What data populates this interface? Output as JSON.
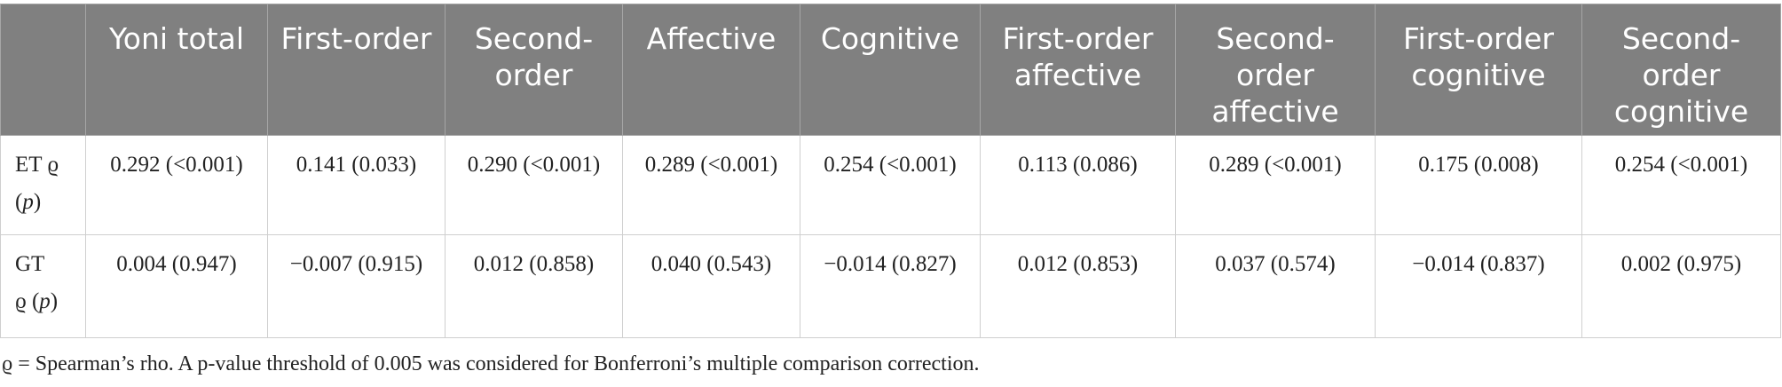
{
  "table": {
    "headers": [
      "",
      "Yoni total",
      "First-order",
      "Second-order",
      "Affective",
      "Cognitive",
      "First-order affective",
      "Second-order affective",
      "First-order cognitive",
      "Second-order cognitive"
    ],
    "rows": [
      {
        "label_main": "ET ϱ",
        "label_open": "(",
        "label_p": "p",
        "label_close": ")",
        "cells": [
          "0.292 (<0.001)",
          "0.141 (0.033)",
          "0.290 (<0.001)",
          "0.289 (<0.001)",
          "0.254 (<0.001)",
          "0.113 (0.086)",
          "0.289 (<0.001)",
          "0.175 (0.008)",
          "0.254 (<0.001)"
        ]
      },
      {
        "label_main": "GT",
        "label_open": "ϱ (",
        "label_p": "p",
        "label_close": ")",
        "cells": [
          "0.004 (0.947)",
          "−0.007 (0.915)",
          "0.012 (0.858)",
          "0.040 (0.543)",
          "−0.014 (0.827)",
          "0.012 (0.853)",
          "0.037 (0.574)",
          "−0.014 (0.837)",
          "0.002 (0.975)"
        ]
      }
    ]
  },
  "footnote": "ϱ = Spearman’s rho. A p-value threshold of 0.005 was considered for Bonferroni’s multiple comparison correction."
}
